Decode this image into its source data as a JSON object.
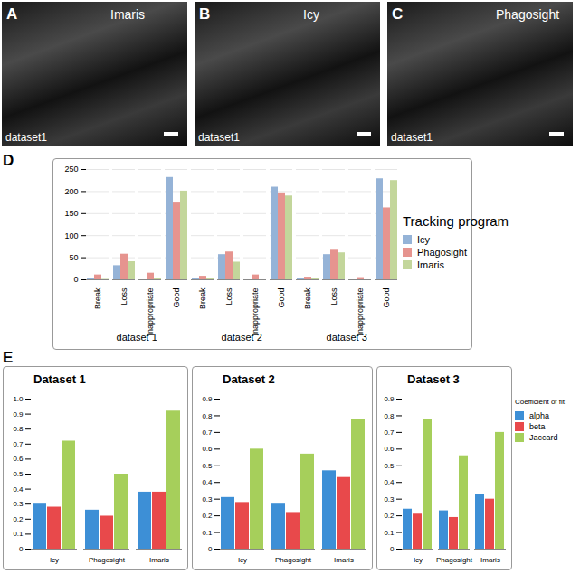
{
  "images": [
    {
      "panel": "A",
      "label": "Imaris",
      "dataset": "dataset1"
    },
    {
      "panel": "B",
      "label": "Icy",
      "dataset": "dataset1"
    },
    {
      "panel": "C",
      "label": "Phagosight",
      "dataset": "dataset1"
    }
  ],
  "panel_letters": [
    "D",
    "E"
  ],
  "chart_data": [
    {
      "type": "bar",
      "categories": [
        "Break",
        "Loss",
        "Inappropriate",
        "Good",
        "Break",
        "Loss",
        "Inappropriate",
        "Good",
        "Break",
        "Loss",
        "Inappropriate",
        "Good"
      ],
      "groups": [
        "dataset 1",
        "dataset 2",
        "dataset 3"
      ],
      "series": [
        {
          "name": "Icy",
          "color": "#95b3d7",
          "values": [
            3,
            32,
            0,
            232,
            4,
            57,
            0,
            210,
            3,
            57,
            0,
            229
          ]
        },
        {
          "name": "Phagosight",
          "color": "#e6948f",
          "values": [
            11,
            58,
            15,
            174,
            8,
            63,
            11,
            197,
            6,
            67,
            5,
            163
          ]
        },
        {
          "name": "Imaris",
          "color": "#c3d69b",
          "values": [
            1,
            41,
            2,
            201,
            2,
            40,
            0,
            190,
            2,
            61,
            0,
            225
          ]
        }
      ],
      "ylim": [
        0,
        250
      ],
      "yticks": [
        0,
        50,
        100,
        150,
        200,
        250
      ],
      "grid": true,
      "legend": "right",
      "legend_title": "Tracking program"
    },
    {
      "type": "bar",
      "title": "Dataset 1",
      "categories": [
        "Icy",
        "Phagosight",
        "Imaris"
      ],
      "series": [
        {
          "name": "alpha",
          "color": "#3d8fd6",
          "values": [
            0.3,
            0.26,
            0.38
          ]
        },
        {
          "name": "beta",
          "color": "#e8494b",
          "values": [
            0.28,
            0.22,
            0.38
          ]
        },
        {
          "name": "Jaccard",
          "color": "#a6cf5b",
          "values": [
            0.72,
            0.5,
            0.92
          ]
        }
      ],
      "ylim": [
        0,
        1
      ],
      "yticks": [
        0,
        0.1,
        0.2,
        0.3,
        0.4,
        0.5,
        0.6,
        0.7,
        0.8,
        0.9,
        {
          "value": 1,
          "label": "1.0"
        }
      ]
    },
    {
      "type": "bar",
      "title": "Dataset 2",
      "categories": [
        "Icy",
        "Phagosight",
        "Imaris"
      ],
      "series": [
        {
          "name": "alpha",
          "color": "#3d8fd6",
          "values": [
            0.31,
            0.27,
            0.47
          ]
        },
        {
          "name": "beta",
          "color": "#e8494b",
          "values": [
            0.28,
            0.22,
            0.43
          ]
        },
        {
          "name": "Jaccard",
          "color": "#a6cf5b",
          "values": [
            0.6,
            0.57,
            0.78
          ]
        }
      ],
      "ylim": [
        0,
        0.9
      ],
      "yticks": [
        0,
        0.1,
        0.2,
        0.3,
        0.4,
        0.5,
        0.6,
        0.7,
        0.8,
        0.9
      ]
    },
    {
      "type": "bar",
      "title": "Dataset 3",
      "categories": [
        "Icy",
        "Phagosight",
        "Imaris"
      ],
      "series": [
        {
          "name": "alpha",
          "color": "#3d8fd6",
          "values": [
            0.24,
            0.23,
            0.33
          ]
        },
        {
          "name": "beta",
          "color": "#e8494b",
          "values": [
            0.21,
            0.19,
            0.3
          ]
        },
        {
          "name": "Jaccard",
          "color": "#a6cf5b",
          "values": [
            0.78,
            0.56,
            0.7
          ]
        }
      ],
      "ylim": [
        0,
        0.9
      ],
      "yticks": [
        0,
        0.1,
        0.2,
        0.3,
        0.4,
        0.5,
        0.6,
        0.7,
        0.8,
        0.9
      ],
      "legend": "right",
      "legend_title": "Coefficient of fit"
    }
  ]
}
